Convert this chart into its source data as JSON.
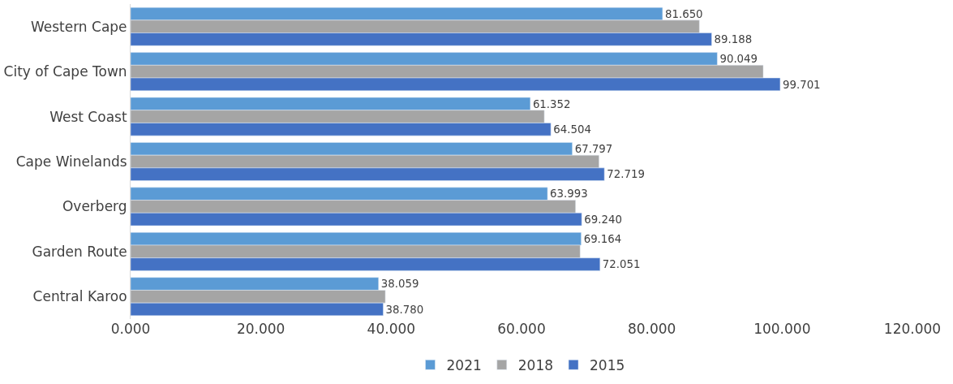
{
  "chart_data": {
    "type": "bar",
    "orientation": "horizontal",
    "categories": [
      "Western Cape",
      "City of Cape Town",
      "West Coast",
      "Cape Winelands",
      "Overberg",
      "Garden Route",
      "Central Karoo"
    ],
    "series": [
      {
        "name": "2021",
        "color": "#5b9bd5",
        "values": [
          81.65,
          90.049,
          61.352,
          67.797,
          63.993,
          69.164,
          38.059
        ],
        "value_labels": [
          "81.650",
          "90.049",
          "61.352",
          "67.797",
          "63.993",
          "69.164",
          "38.059"
        ]
      },
      {
        "name": "2018",
        "color": "#a5a5a5",
        "values": [
          87.3,
          97.1,
          63.5,
          71.9,
          68.3,
          69.0,
          39.1
        ]
      },
      {
        "name": "2015",
        "color": "#4472c4",
        "values": [
          89.188,
          99.701,
          64.504,
          72.719,
          69.24,
          72.051,
          38.78
        ],
        "value_labels": [
          "89.188",
          "99.701",
          "64.504",
          "72.719",
          "69.240",
          "72.051",
          "38.780"
        ]
      }
    ],
    "xlim": [
      0,
      120
    ],
    "xticks": [
      {
        "value": 0,
        "label": "0.000"
      },
      {
        "value": 20,
        "label": "20.000"
      },
      {
        "value": 40,
        "label": "40.000"
      },
      {
        "value": 60,
        "label": "60.000"
      },
      {
        "value": 80,
        "label": "80.000"
      },
      {
        "value": 100,
        "label": "100.000"
      },
      {
        "value": 120,
        "label": "120.000"
      }
    ],
    "legend": "bottom"
  }
}
